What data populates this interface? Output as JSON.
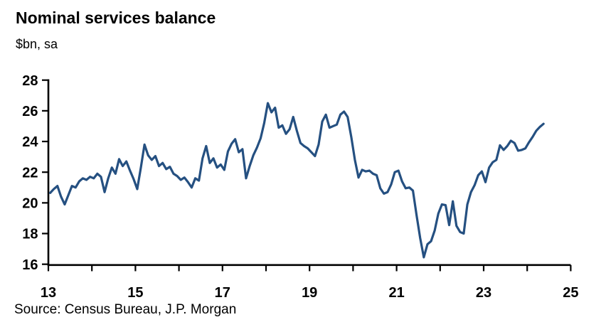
{
  "header": {
    "title": "Nominal services balance",
    "subtitle": "$bn, sa"
  },
  "footer": {
    "source_note": "Source: Census Bureau, J.P. Morgan"
  },
  "chart_data": {
    "type": "line",
    "title": "Nominal services balance",
    "ylabel": "$bn, sa",
    "frequency": "monthly",
    "period_start": "2013-01",
    "period_end": "2024-05",
    "xlim": [
      13,
      25
    ],
    "ylim": [
      16,
      28
    ],
    "yticks": [
      16,
      18,
      20,
      22,
      24,
      26,
      28
    ],
    "xticks": [
      13,
      14,
      15,
      16,
      17,
      18,
      19,
      20,
      21,
      22,
      23,
      24,
      25
    ],
    "xtick_labels": [
      13,
      15,
      17,
      19,
      21,
      23,
      25
    ],
    "grid": false,
    "legend": "none",
    "line_color": "#255081",
    "axis_color": "#000000",
    "series": [
      {
        "name": "Nominal services balance",
        "values": [
          20.65,
          20.9,
          21.1,
          20.4,
          19.9,
          20.5,
          21.1,
          21.0,
          21.4,
          21.6,
          21.5,
          21.7,
          21.6,
          21.9,
          21.7,
          20.7,
          21.6,
          22.3,
          21.9,
          22.85,
          22.4,
          22.7,
          22.1,
          21.55,
          20.9,
          22.3,
          23.8,
          23.1,
          22.8,
          23.05,
          22.4,
          22.6,
          22.2,
          22.35,
          21.9,
          21.75,
          21.5,
          21.65,
          21.35,
          21.0,
          21.6,
          21.45,
          22.9,
          23.7,
          22.6,
          22.9,
          22.3,
          22.5,
          22.15,
          23.35,
          23.85,
          24.15,
          23.3,
          23.5,
          21.6,
          22.4,
          23.1,
          23.6,
          24.2,
          25.2,
          26.5,
          25.9,
          26.2,
          24.9,
          25.05,
          24.5,
          24.8,
          25.6,
          24.7,
          23.9,
          23.7,
          23.55,
          23.3,
          23.05,
          23.8,
          25.3,
          25.75,
          24.9,
          25.0,
          25.1,
          25.75,
          25.95,
          25.6,
          24.3,
          22.8,
          21.65,
          22.15,
          22.05,
          22.1,
          21.9,
          21.8,
          20.95,
          20.6,
          20.7,
          21.2,
          22.0,
          22.1,
          21.4,
          20.95,
          21.0,
          20.8,
          19.2,
          17.7,
          16.45,
          17.3,
          17.5,
          18.2,
          19.3,
          19.9,
          19.85,
          18.55,
          20.1,
          18.5,
          18.1,
          18.0,
          19.9,
          20.7,
          21.15,
          21.8,
          22.05,
          21.35,
          22.3,
          22.65,
          22.8,
          23.75,
          23.45,
          23.7,
          24.05,
          23.9,
          23.4,
          23.45,
          23.55,
          23.95,
          24.3,
          24.7,
          24.95,
          25.15
        ]
      }
    ]
  }
}
